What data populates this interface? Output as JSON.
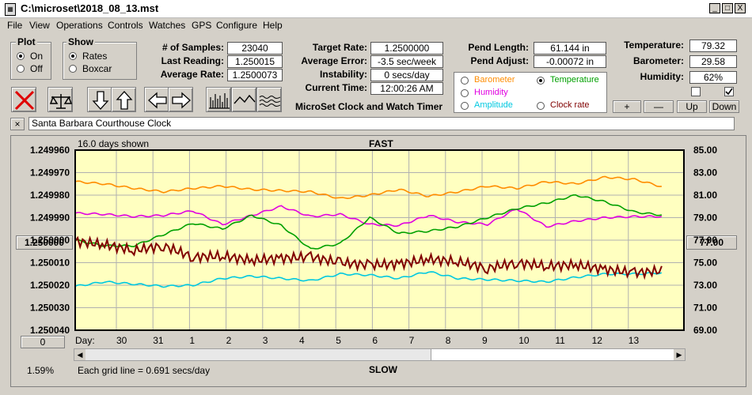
{
  "window": {
    "title": "C:\\microset\\2018_08_13.mst",
    "minimize": "_",
    "maximize": "□",
    "close": "X"
  },
  "menu": [
    "File",
    "View",
    "Operations",
    "Controls",
    "Watches",
    "GPS",
    "Configure",
    "Help"
  ],
  "plot_group": {
    "title": "Plot",
    "on": "On",
    "off": "Off",
    "selected": "On"
  },
  "show_group": {
    "title": "Show",
    "rates": "Rates",
    "boxcar": "Boxcar",
    "selected": "Rates"
  },
  "stats": {
    "samples_label": "# of Samples:",
    "samples": "23040",
    "last_label": "Last Reading:",
    "last": "1.250015",
    "avg_label": "Average Rate:",
    "avg": "1.2500073"
  },
  "rates": {
    "target_label": "Target Rate:",
    "target": "1.2500000",
    "avgerr_label": "Average Error:",
    "avgerr": "-3.5 sec/week",
    "instab_label": "Instability:",
    "instab": "0 secs/day",
    "time_label": "Current Time:",
    "time": "12:00:26 AM"
  },
  "pend": {
    "length_label": "Pend Length:",
    "length": "61.144 in",
    "adjust_label": "Pend Adjust:",
    "adjust": "-0.00072 in"
  },
  "env": {
    "temp_label": "Temperature:",
    "temp": "79.32",
    "baro_label": "Barometer:",
    "baro": "29.58",
    "hum_label": "Humidity:",
    "hum": "62%"
  },
  "overlay": {
    "barometer": "Barometer",
    "temperature": "Temperature",
    "humidity": "Humidity",
    "amplitude": "Amplitude",
    "clockrate": "Clock rate",
    "selected": "Temperature",
    "colors": {
      "barometer": "#ff8c00",
      "temperature": "#00a000",
      "humidity": "#e000e0",
      "amplitude": "#00c8e0",
      "clockrate": "#800000"
    }
  },
  "app_caption": "MicroSet Clock and Watch Timer",
  "small_buttons": {
    "plus": "+",
    "minus": "—",
    "up": "Up",
    "down": "Down"
  },
  "clock_name": "Santa Barbara Courthouse Clock",
  "clock_close": "×",
  "chart": {
    "days_shown": "16.0 days shown",
    "fast": "FAST",
    "slow": "SLOW",
    "grid_note": "Each grid line = 0.691 secs/day",
    "day_label": "Day:",
    "left_button": "1.250000",
    "right_button": "77.00",
    "zero_button": "0",
    "percent": "1.59%"
  },
  "chart_data": {
    "type": "line",
    "x_ticks": [
      "30",
      "31",
      "1",
      "2",
      "3",
      "4",
      "5",
      "6",
      "7",
      "8",
      "9",
      "10",
      "11",
      "12",
      "13"
    ],
    "y_left_ticks": [
      "1.249960",
      "1.249970",
      "1.249980",
      "1.249990",
      "1.250000",
      "1.250010",
      "1.250020",
      "1.250030",
      "1.250040"
    ],
    "y_right_ticks": [
      "85.00",
      "83.00",
      "81.00",
      "79.00",
      "77.00",
      "75.00",
      "73.00",
      "71.00",
      "69.00"
    ],
    "ylim_left": [
      1.24996,
      1.25004
    ],
    "ylim_right": [
      69,
      85
    ],
    "series": [
      {
        "color": "#ff8c00",
        "values": [
          82.2,
          82.0,
          81.6,
          81.3,
          81.6,
          81.8,
          81.5,
          81.4,
          81.3,
          80.7,
          81.0,
          81.5,
          80.9,
          81.3,
          81.8,
          81.6,
          82.2,
          82.0,
          82.6,
          82.4,
          81.7
        ]
      },
      {
        "color": "#e000e0",
        "values": [
          79.4,
          79.3,
          79.1,
          79.2,
          79.6,
          78.4,
          79.2,
          80.0,
          79.1,
          79.3,
          78.4,
          78.3,
          79.2,
          78.6,
          78.4,
          79.8,
          78.2,
          78.7,
          79.0,
          79.1,
          79.1
        ]
      },
      {
        "color": "#00a000",
        "values": [
          77.0,
          76.5,
          76.5,
          77.5,
          78.5,
          78.0,
          79.2,
          78.3,
          76.2,
          76.7,
          79.0,
          77.6,
          77.8,
          78.2,
          79.0,
          79.8,
          80.3,
          81.0,
          80.4,
          79.5,
          79.2
        ]
      },
      {
        "color": "#00c8e0",
        "values": [
          72.9,
          73.3,
          73.1,
          72.9,
          73.0,
          73.6,
          73.8,
          73.6,
          73.4,
          74.0,
          73.9,
          73.6,
          74.2,
          73.6,
          73.5,
          73.4,
          73.3,
          73.7,
          74.0,
          74.0,
          74.1
        ]
      },
      {
        "color": "#800000",
        "values": [
          76.9,
          76.6,
          76.1,
          76.5,
          75.5,
          75.6,
          75.2,
          75.4,
          75.5,
          75.0,
          74.8,
          74.9,
          75.3,
          75.1,
          74.5,
          75.0,
          74.7,
          74.8,
          74.4,
          74.1,
          74.3
        ]
      }
    ]
  }
}
